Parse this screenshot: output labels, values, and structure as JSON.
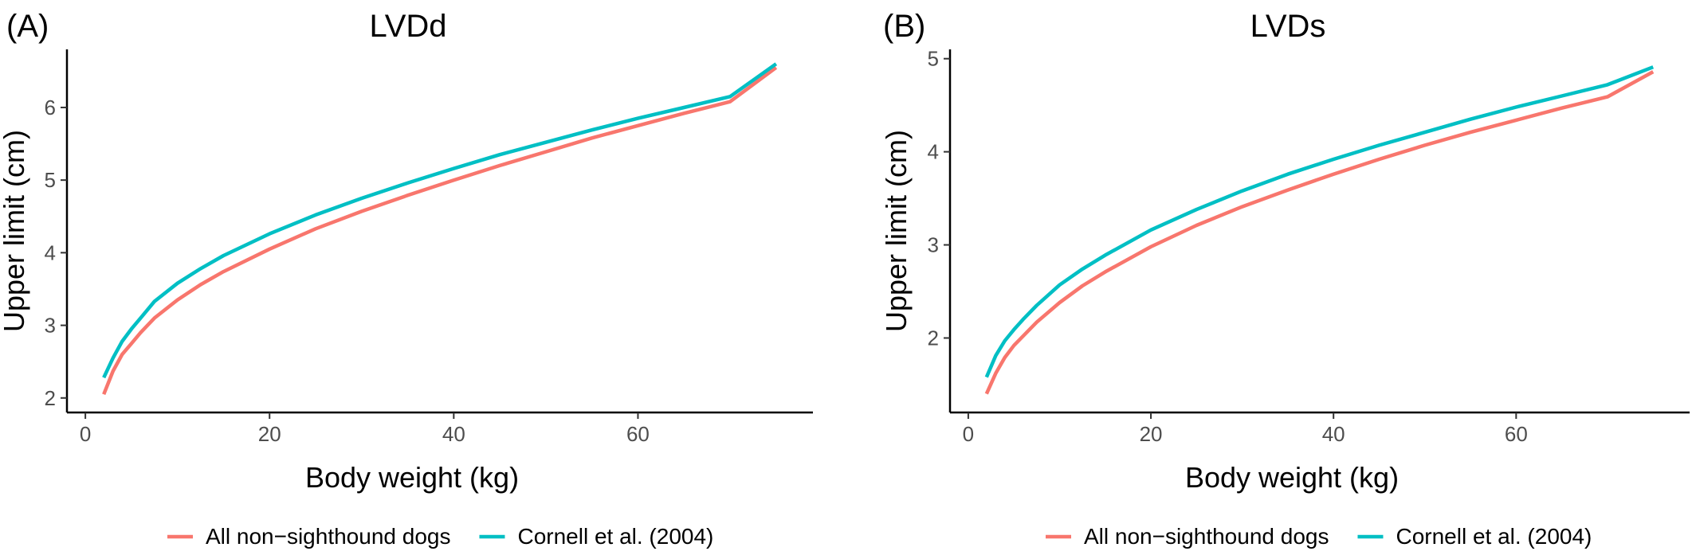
{
  "chart_data": [
    {
      "type": "line",
      "panel": "(A)",
      "title": "LVDd",
      "xlabel": "Body weight (kg)",
      "ylabel": "Upper limit (cm)",
      "xlim": [
        -2,
        79
      ],
      "ylim": [
        1.8,
        6.8
      ],
      "xticks": [
        0,
        20,
        40,
        60
      ],
      "yticks": [
        2,
        3,
        4,
        5,
        6
      ],
      "grid": false,
      "legend": "bottom",
      "x": [
        2,
        3,
        4,
        5,
        6,
        7.5,
        10,
        12.5,
        15,
        20,
        25,
        30,
        35,
        40,
        45,
        50,
        55,
        60,
        65,
        70,
        75
      ],
      "series": [
        {
          "name": "All non−sighthound dogs",
          "color": "#F8766D",
          "values": [
            2.05,
            2.37,
            2.6,
            2.75,
            2.9,
            3.1,
            3.35,
            3.56,
            3.74,
            4.05,
            4.33,
            4.57,
            4.79,
            5.0,
            5.2,
            5.39,
            5.58,
            5.75,
            5.92,
            6.08,
            6.55
          ]
        },
        {
          "name": "Cornell et al. (2004)",
          "color": "#00BFC4",
          "values": [
            2.28,
            2.55,
            2.78,
            2.95,
            3.1,
            3.33,
            3.58,
            3.78,
            3.96,
            4.26,
            4.52,
            4.75,
            4.96,
            5.16,
            5.35,
            5.52,
            5.69,
            5.85,
            6.0,
            6.15,
            6.6
          ]
        }
      ]
    },
    {
      "type": "line",
      "panel": "(B)",
      "title": "LVDs",
      "xlabel": "Body weight (kg)",
      "ylabel": "Upper limit (cm)",
      "xlim": [
        -2,
        79
      ],
      "ylim": [
        1.2,
        5.1
      ],
      "xticks": [
        0,
        20,
        40,
        60
      ],
      "yticks": [
        2,
        3,
        4,
        5
      ],
      "grid": false,
      "legend": "bottom",
      "x": [
        2,
        3,
        4,
        5,
        6,
        7.5,
        10,
        12.5,
        15,
        20,
        25,
        30,
        35,
        40,
        45,
        50,
        55,
        60,
        65,
        70,
        75
      ],
      "series": [
        {
          "name": "All non−sighthound dogs",
          "color": "#F8766D",
          "values": [
            1.4,
            1.62,
            1.79,
            1.92,
            2.02,
            2.17,
            2.38,
            2.56,
            2.71,
            2.98,
            3.21,
            3.41,
            3.59,
            3.76,
            3.92,
            4.07,
            4.21,
            4.34,
            4.47,
            4.59,
            4.86
          ]
        },
        {
          "name": "Cornell et al. (2004)",
          "color": "#00BFC4",
          "values": [
            1.58,
            1.81,
            1.97,
            2.09,
            2.2,
            2.35,
            2.57,
            2.74,
            2.89,
            3.16,
            3.38,
            3.58,
            3.76,
            3.92,
            4.07,
            4.21,
            4.35,
            4.48,
            4.6,
            4.72,
            4.91
          ]
        }
      ]
    }
  ]
}
